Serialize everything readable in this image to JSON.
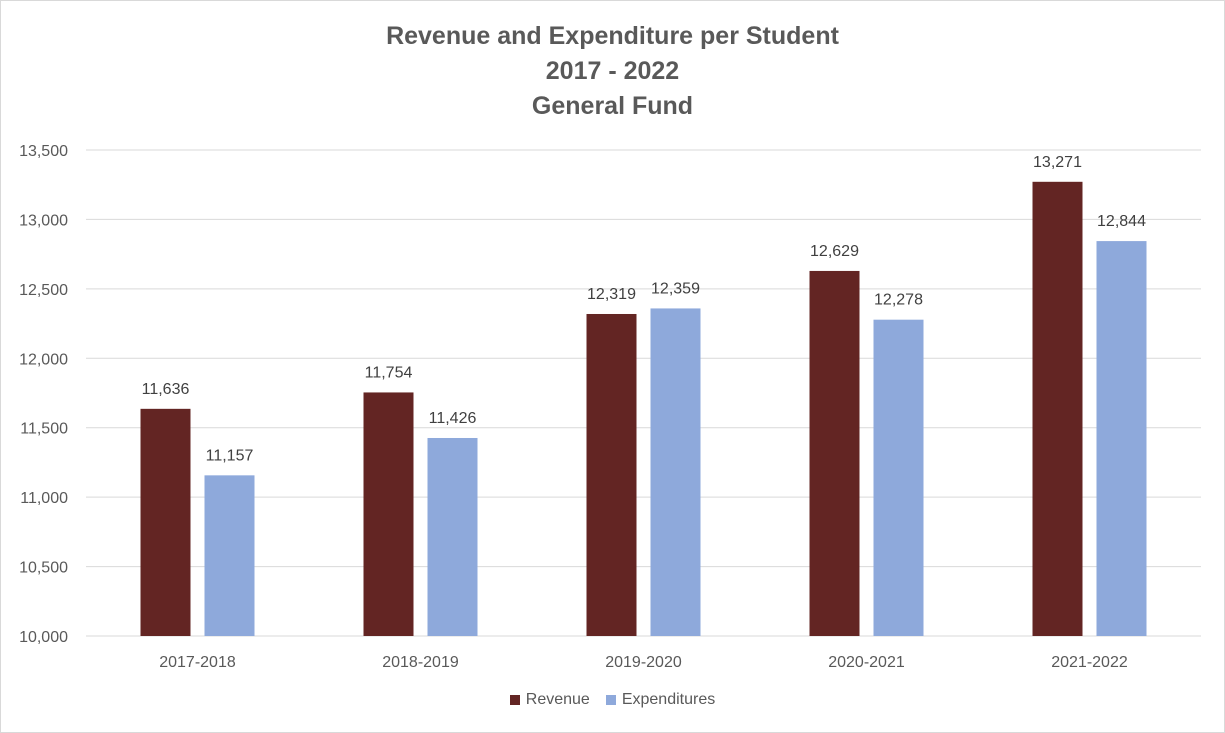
{
  "chart_data": {
    "type": "bar",
    "title_lines": [
      "Revenue and Expenditure per Student",
      "2017 - 2022",
      "General Fund"
    ],
    "categories": [
      "2017-2018",
      "2018-2019",
      "2019-2020",
      "2020-2021",
      "2021-2022"
    ],
    "series": [
      {
        "name": "Revenue",
        "color": "#632523",
        "values": [
          11636,
          11754,
          12319,
          12629,
          13271
        ]
      },
      {
        "name": "Expenditures",
        "color": "#8EA9DB",
        "values": [
          11157,
          11426,
          12359,
          12278,
          12844
        ]
      }
    ],
    "ylim": [
      10000,
      13500
    ],
    "yticks": [
      10000,
      10500,
      11000,
      11500,
      12000,
      12500,
      13000,
      13500
    ],
    "ytick_labels": [
      "10,000",
      "10,500",
      "11,000",
      "11,500",
      "12,000",
      "12,500",
      "13,000",
      "13,500"
    ],
    "data_labels": [
      [
        "11,636",
        "11,754",
        "12,319",
        "12,629",
        "13,271"
      ],
      [
        "11,157",
        "11,426",
        "12,359",
        "12,278",
        "12,844"
      ]
    ],
    "grid": true,
    "legend_position": "bottom"
  }
}
